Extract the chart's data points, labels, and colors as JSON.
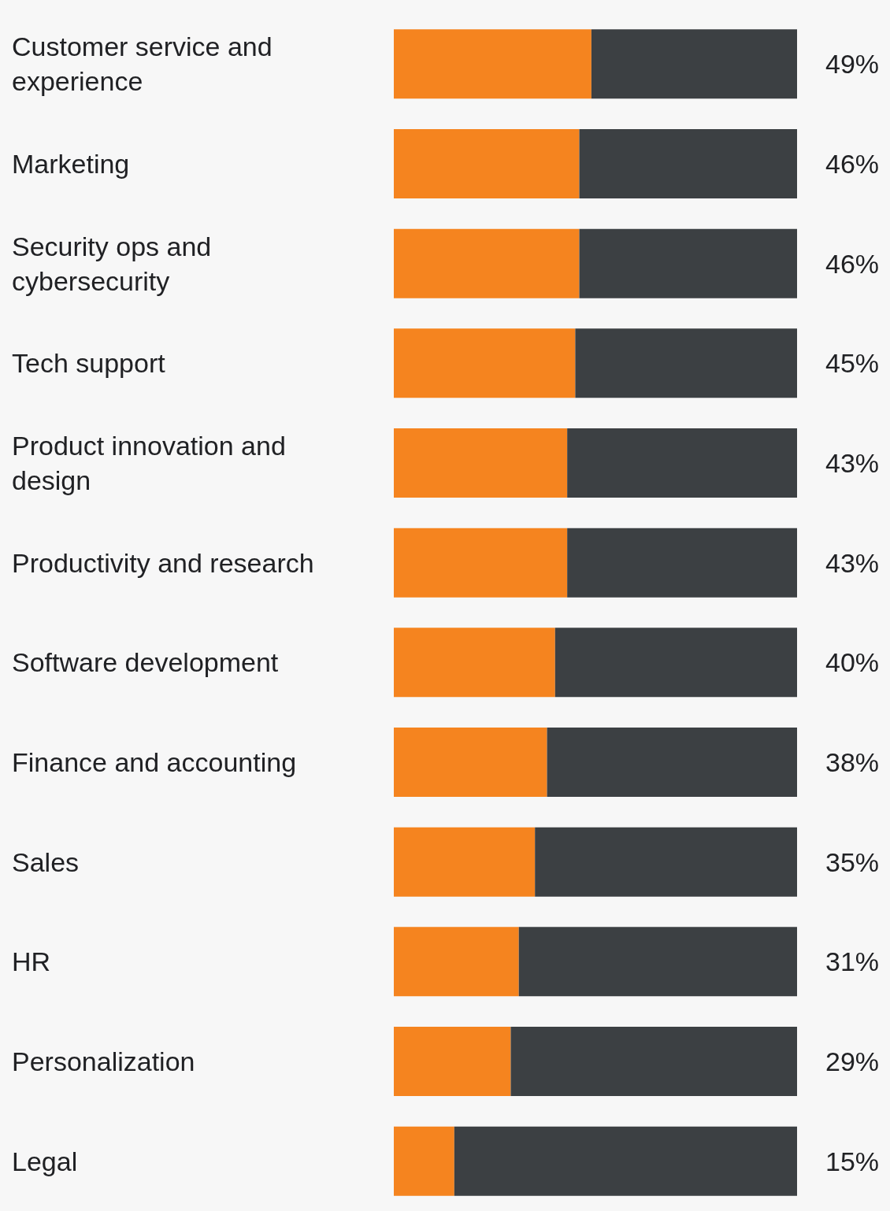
{
  "chart_data": {
    "type": "bar",
    "orientation": "horizontal",
    "stacked": true,
    "categories": [
      "Customer service and experience",
      "Marketing",
      "Security ops and cybersecurity",
      "Tech support",
      "Product innovation and design",
      "Productivity and research",
      "Software development",
      "Finance and accounting",
      "Sales",
      "HR",
      "Personalization",
      "Legal"
    ],
    "series": [
      {
        "color": "#f5841f",
        "values": [
          49,
          46,
          46,
          45,
          43,
          43,
          40,
          38,
          35,
          31,
          29,
          15
        ],
        "value_labels": [
          "49%",
          "46%",
          "46%",
          "45%",
          "43%",
          "43%",
          "40%",
          "38%",
          "35%",
          "31%",
          "29%",
          "15%"
        ]
      },
      {
        "color": "#3c4043",
        "values": [
          51,
          54,
          54,
          55,
          57,
          57,
          60,
          62,
          65,
          69,
          71,
          85
        ]
      }
    ],
    "xlim": [
      0,
      100
    ],
    "tick_labels": "y"
  }
}
